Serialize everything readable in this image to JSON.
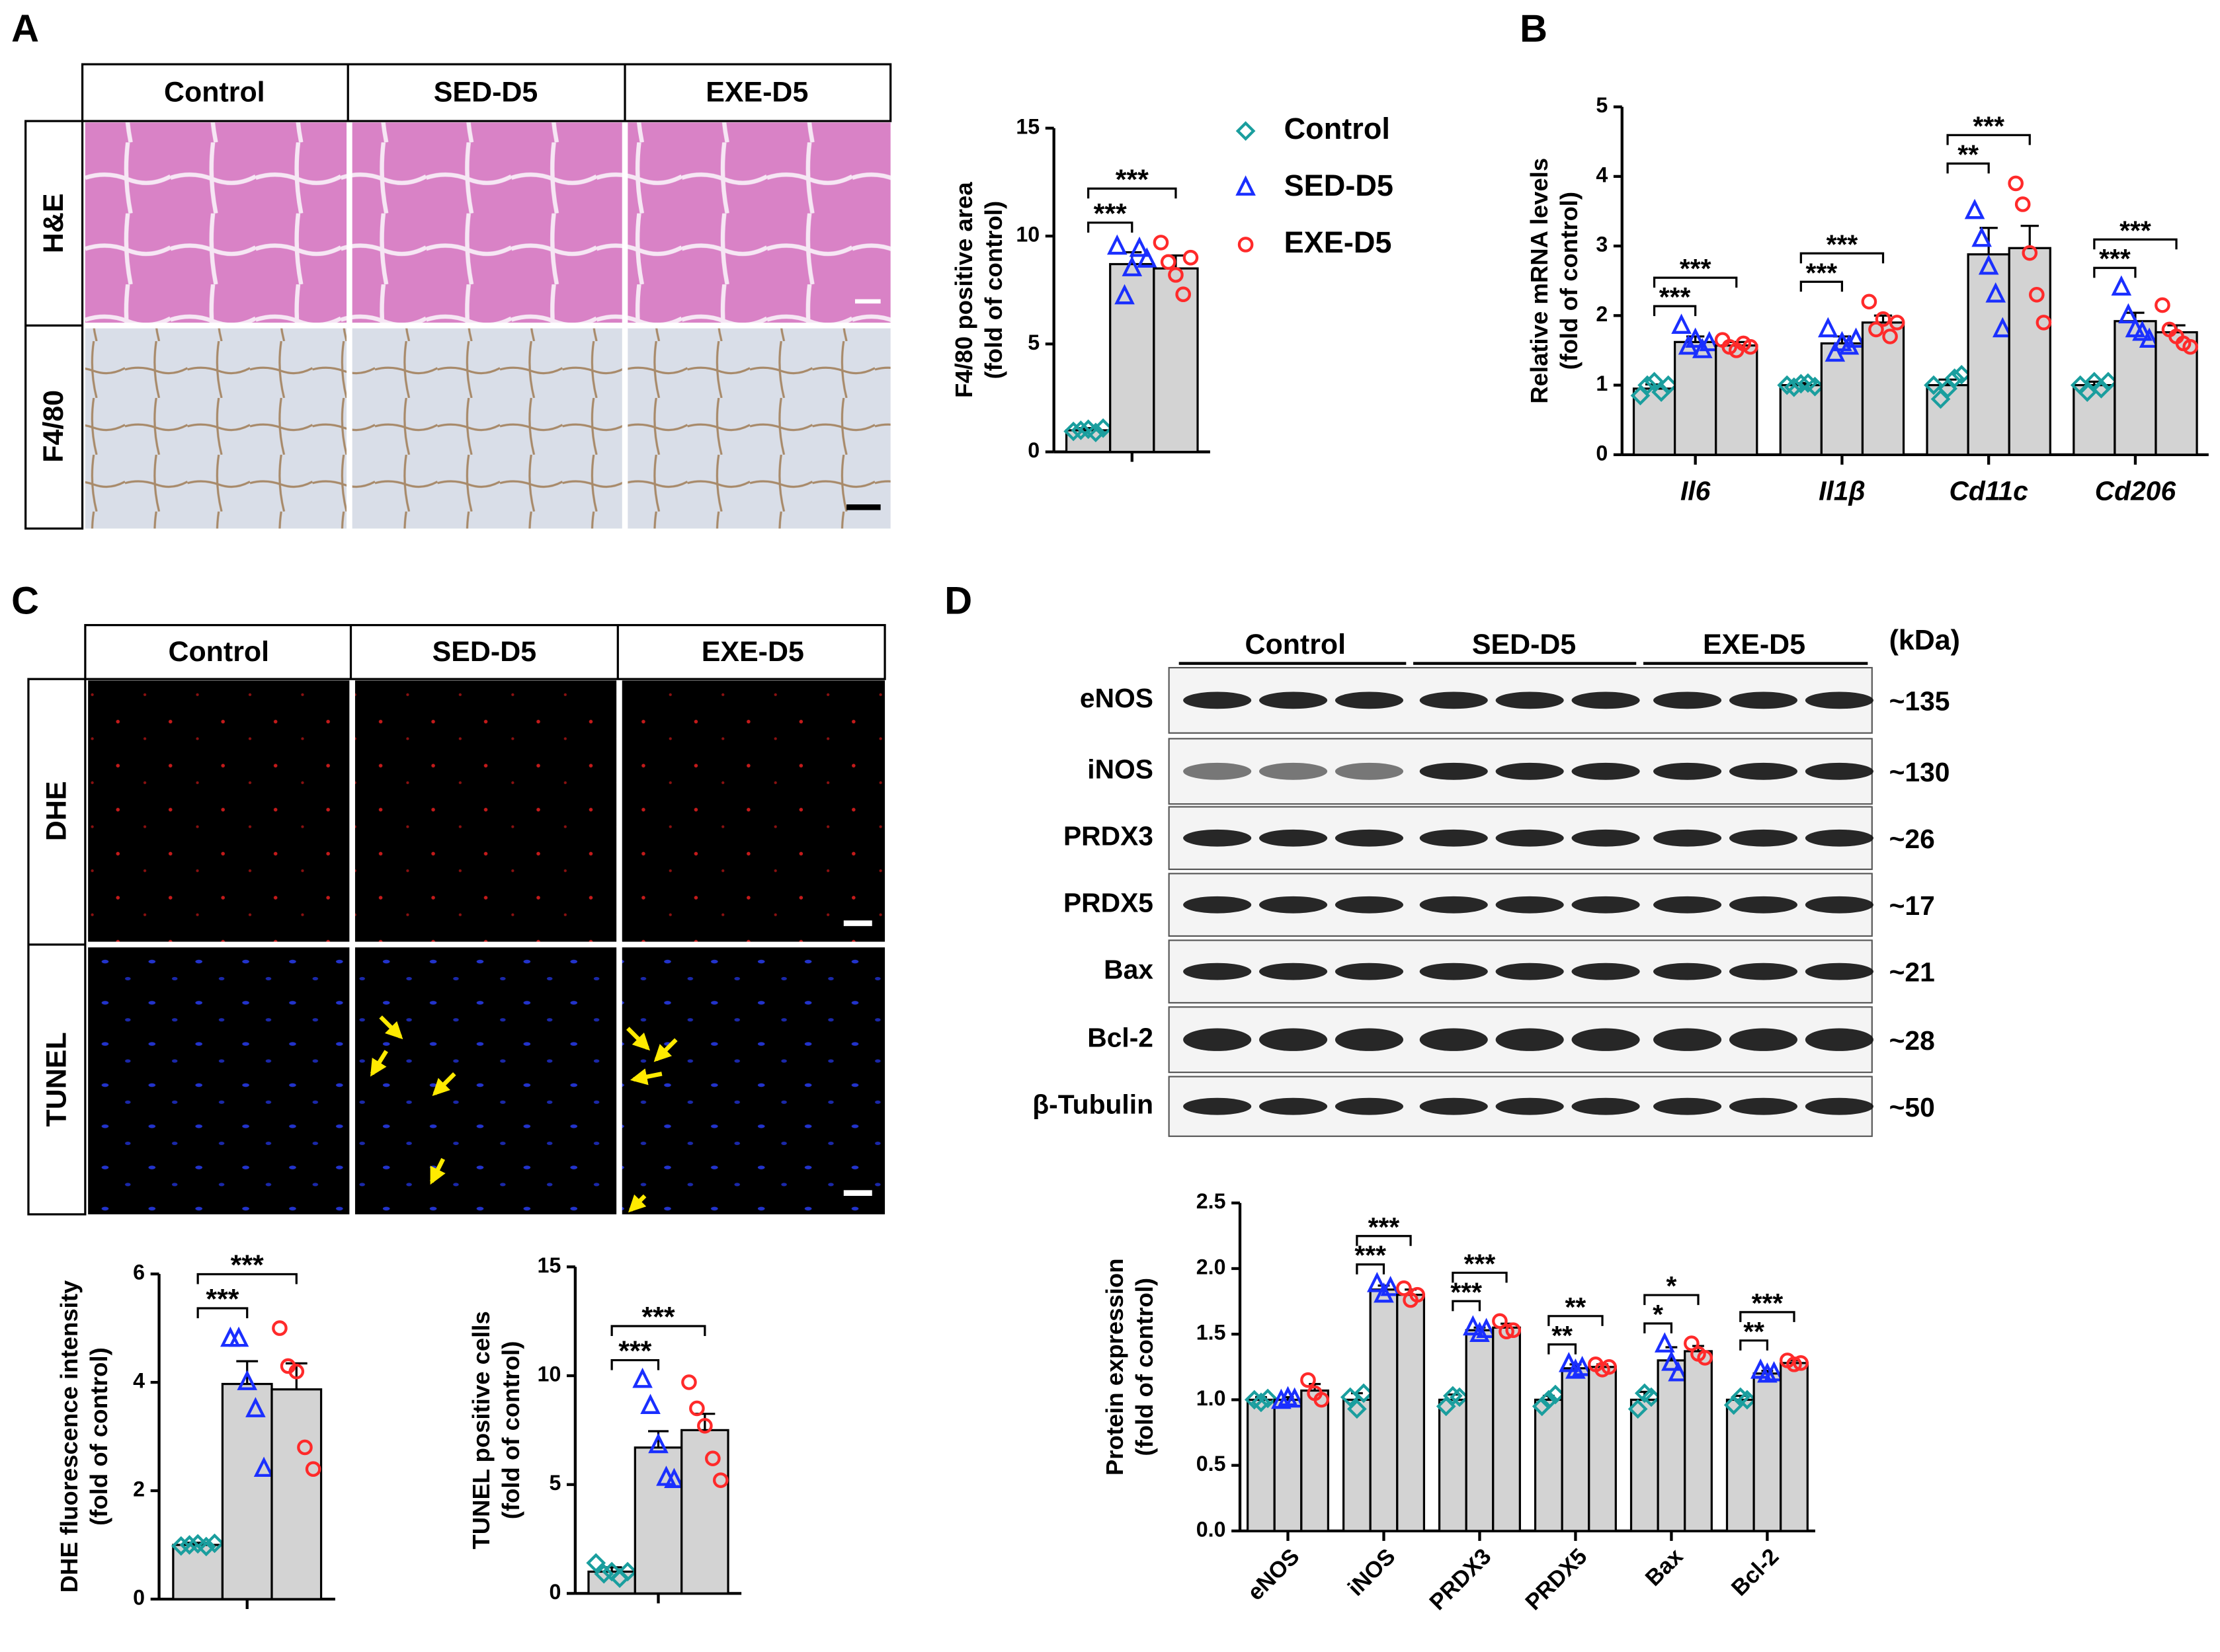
{
  "panels": [
    "A",
    "B",
    "C",
    "D"
  ],
  "imaging_A": {
    "columns": [
      "Control",
      "SED-D5",
      "EXE-D5"
    ],
    "rows": [
      "H&E",
      "F4/80"
    ]
  },
  "imaging_C": {
    "columns": [
      "Control",
      "SED-D5",
      "EXE-D5"
    ],
    "rows": [
      "DHE",
      "TUNEL"
    ]
  },
  "blot_D": {
    "groups": [
      "Control",
      "SED-D5",
      "EXE-D5"
    ],
    "unit": "(kDa)",
    "proteins": [
      {
        "name": "eNOS",
        "size": "~135"
      },
      {
        "name": "iNOS",
        "size": "~130"
      },
      {
        "name": "PRDX3",
        "size": "~26"
      },
      {
        "name": "PRDX5",
        "size": "~17"
      },
      {
        "name": "Bax",
        "size": "~21"
      },
      {
        "name": "Bcl-2",
        "size": "~28"
      },
      {
        "name": "β-Tubulin",
        "size": "~50"
      }
    ]
  },
  "chart_data": [
    {
      "type": "bar",
      "ylabel": [
        "F4/80 positive area",
        "(fold of control)"
      ],
      "categories": [
        null
      ],
      "ylim": [
        0,
        15
      ],
      "yticks": [
        0,
        5,
        10,
        15
      ],
      "legend": "right",
      "series": [
        {
          "name": "Control",
          "color": "#1a9e9e",
          "marker": "diamond",
          "values": [
            1.0
          ],
          "errors": [
            0.1
          ],
          "points": [
            [
              0.95,
              1.0,
              1.05,
              0.9,
              1.1
            ]
          ]
        },
        {
          "name": "SED-D5",
          "color": "#1a2fff",
          "marker": "triangle",
          "values": [
            8.7
          ],
          "errors": [
            0.55
          ],
          "points": [
            [
              9.5,
              7.2,
              8.5,
              9.4,
              8.9
            ]
          ]
        },
        {
          "name": "EXE-D5",
          "color": "#ff2a2a",
          "marker": "circle",
          "values": [
            8.5
          ],
          "errors": [
            0.6
          ],
          "points": [
            [
              9.7,
              8.8,
              8.2,
              7.3,
              9.0
            ]
          ]
        }
      ],
      "significance": [
        [
          "***",
          "***"
        ]
      ]
    },
    {
      "type": "bar",
      "ylabel": [
        "Relative  mRNA levels",
        "(fold of control)"
      ],
      "categories": [
        "Il6",
        "Il1β",
        "Cd11c",
        "Cd206"
      ],
      "ylim": [
        0,
        5
      ],
      "yticks": [
        0,
        1,
        2,
        3,
        4,
        5
      ],
      "series": [
        {
          "color": "#1a9e9e",
          "marker": "diamond",
          "values": [
            0.95,
            1.0,
            1.0,
            1.0
          ],
          "errors": [
            0.06,
            0.03,
            0.08,
            0.05
          ],
          "points": [
            [
              0.85,
              1.0,
              1.05,
              0.9,
              1.0
            ],
            [
              1.0,
              0.97,
              1.02,
              1.03,
              0.98
            ],
            [
              1.0,
              0.8,
              0.95,
              1.1,
              1.15
            ],
            [
              1.0,
              0.9,
              1.05,
              0.95,
              1.05
            ]
          ]
        },
        {
          "color": "#1a2fff",
          "marker": "triangle",
          "values": [
            1.62,
            1.6,
            2.88,
            1.92
          ],
          "errors": [
            0.08,
            0.1,
            0.38,
            0.12
          ],
          "points": [
            [
              1.85,
              1.55,
              1.65,
              1.5,
              1.6
            ],
            [
              1.8,
              1.45,
              1.6,
              1.55,
              1.65
            ],
            [
              3.5,
              3.1,
              2.7,
              2.3,
              1.8
            ],
            [
              2.4,
              2.0,
              1.8,
              1.75,
              1.65
            ]
          ]
        },
        {
          "color": "#ff2a2a",
          "marker": "circle",
          "values": [
            1.57,
            1.9,
            2.97,
            1.76
          ],
          "errors": [
            0.05,
            0.1,
            0.32,
            0.1
          ],
          "points": [
            [
              1.65,
              1.55,
              1.5,
              1.6,
              1.55
            ],
            [
              2.2,
              1.8,
              1.95,
              1.7,
              1.9
            ],
            [
              3.9,
              3.6,
              2.9,
              2.3,
              1.9
            ],
            [
              2.15,
              1.8,
              1.7,
              1.6,
              1.55
            ]
          ]
        }
      ],
      "significance": [
        [
          "***",
          "***"
        ],
        [
          "***",
          "***"
        ],
        [
          "**",
          "***"
        ],
        [
          "***",
          "***"
        ]
      ]
    },
    {
      "type": "bar",
      "ylabel": [
        "DHE fluorescence intensity",
        "(fold of control)"
      ],
      "categories": [
        null
      ],
      "ylim": [
        0,
        6
      ],
      "yticks": [
        0,
        2,
        4,
        6
      ],
      "series": [
        {
          "color": "#1a9e9e",
          "marker": "diamond",
          "values": [
            1.0
          ],
          "errors": [
            0.04
          ],
          "points": [
            [
              0.98,
              1.0,
              1.02,
              0.97,
              1.03
            ]
          ]
        },
        {
          "color": "#1a2fff",
          "marker": "triangle",
          "values": [
            3.97
          ],
          "errors": [
            0.42
          ],
          "points": [
            [
              4.8,
              4.8,
              4.0,
              3.5,
              2.4
            ]
          ]
        },
        {
          "color": "#ff2a2a",
          "marker": "circle",
          "values": [
            3.87
          ],
          "errors": [
            0.48
          ],
          "points": [
            [
              5.0,
              4.3,
              4.2,
              2.8,
              2.4
            ]
          ]
        }
      ],
      "significance": [
        [
          "***",
          "***"
        ]
      ]
    },
    {
      "type": "bar",
      "ylabel": [
        "TUNEL positive cells",
        "(fold of control)"
      ],
      "categories": [
        null
      ],
      "ylim": [
        0,
        15
      ],
      "yticks": [
        0,
        5,
        10,
        15
      ],
      "series": [
        {
          "color": "#1a9e9e",
          "marker": "diamond",
          "values": [
            1.0
          ],
          "errors": [
            0.2
          ],
          "points": [
            [
              1.4,
              0.9,
              1.0,
              0.7,
              1.0
            ]
          ]
        },
        {
          "color": "#1a2fff",
          "marker": "triangle",
          "values": [
            6.7
          ],
          "errors": [
            0.75
          ],
          "points": [
            [
              9.8,
              8.6,
              6.8,
              5.3,
              5.2
            ]
          ]
        },
        {
          "color": "#ff2a2a",
          "marker": "circle",
          "values": [
            7.5
          ],
          "errors": [
            0.75
          ],
          "points": [
            [
              9.7,
              8.5,
              7.7,
              6.2,
              5.2
            ]
          ]
        }
      ],
      "significance": [
        [
          "***",
          "***"
        ]
      ]
    },
    {
      "type": "bar",
      "ylabel": [
        "Protein expression",
        "(fold of control)"
      ],
      "categories": [
        "eNOS",
        "iNOS",
        "PRDX3",
        "PRDX5",
        "Bax",
        "Bcl-2"
      ],
      "ylim": [
        0,
        2.5
      ],
      "yticks": [
        {
          "value": 0,
          "label": "0.0"
        },
        0.5,
        {
          "value": 1,
          "label": "1.0"
        },
        1.5,
        {
          "value": 2,
          "label": "2.0"
        },
        2.5
      ],
      "series": [
        {
          "color": "#1a9e9e",
          "marker": "diamond",
          "values": [
            1.0,
            1.0,
            1.0,
            1.0,
            1.0,
            1.0
          ],
          "errors": [
            0.02,
            0.05,
            0.04,
            0.03,
            0.06,
            0.03
          ],
          "points": [
            [
              1.0,
              0.98,
              1.01
            ],
            [
              1.02,
              0.93,
              1.05
            ],
            [
              0.95,
              1.03,
              1.02
            ],
            [
              0.95,
              1.0,
              1.04
            ],
            [
              0.93,
              1.05,
              1.02
            ],
            [
              0.96,
              1.02,
              1.0
            ]
          ]
        },
        {
          "color": "#1a2fff",
          "marker": "triangle",
          "values": [
            1.0,
            1.84,
            1.53,
            1.24,
            1.3,
            1.2
          ],
          "errors": [
            0.02,
            0.03,
            0.02,
            0.03,
            0.1,
            0.02
          ],
          "points": [
            [
              0.99,
              1.01,
              1.0
            ],
            [
              1.88,
              1.8,
              1.85
            ],
            [
              1.55,
              1.5,
              1.53
            ],
            [
              1.27,
              1.22,
              1.24
            ],
            [
              1.42,
              1.28,
              1.2
            ],
            [
              1.22,
              1.19,
              1.2
            ]
          ]
        },
        {
          "color": "#ff2a2a",
          "marker": "circle",
          "values": [
            1.07,
            1.8,
            1.55,
            1.25,
            1.37,
            1.28
          ],
          "errors": [
            0.05,
            0.04,
            0.03,
            0.02,
            0.04,
            0.02
          ],
          "points": [
            [
              1.15,
              1.05,
              1.0
            ],
            [
              1.85,
              1.76,
              1.8
            ],
            [
              1.6,
              1.52,
              1.53
            ],
            [
              1.27,
              1.23,
              1.25
            ],
            [
              1.43,
              1.35,
              1.32
            ],
            [
              1.3,
              1.27,
              1.28
            ]
          ]
        }
      ],
      "significance": [
        [],
        [
          "***",
          "***"
        ],
        [
          "***",
          "***"
        ],
        [
          "**",
          "**"
        ],
        [
          "*",
          "*"
        ],
        [
          "**",
          "***"
        ]
      ]
    }
  ]
}
